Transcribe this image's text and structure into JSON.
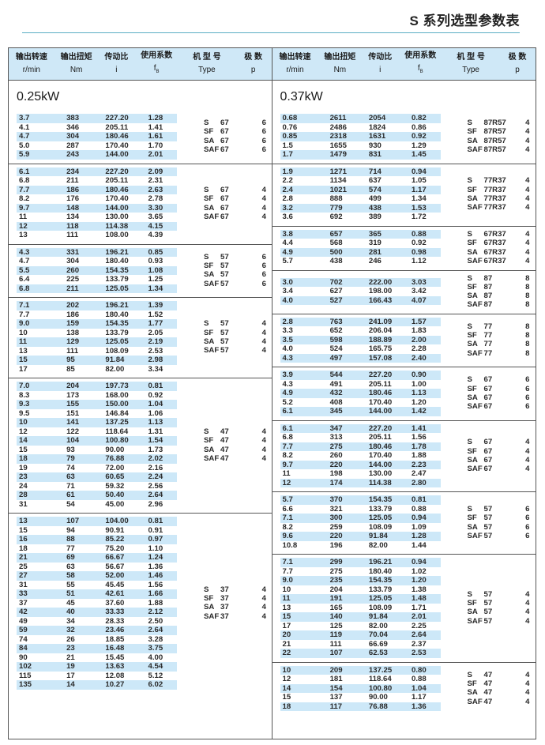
{
  "page_title": "S 系列选型参数表",
  "header": [
    {
      "zh": "输出转速",
      "en": "r/min"
    },
    {
      "zh": "输出扭矩",
      "en": "Nm"
    },
    {
      "zh": "传动比",
      "en": "i"
    },
    {
      "zh": "使用系数",
      "en": "f",
      "sub": "B"
    },
    {
      "zh": "机 型 号",
      "en": "Type"
    },
    {
      "zh": "极 数",
      "en": "p"
    }
  ],
  "left": {
    "power": "0.25kW",
    "groups": [
      {
        "rows": [
          [
            "3.7",
            "383",
            "227.20",
            "1.28"
          ],
          [
            "4.1",
            "346",
            "205.11",
            "1.41"
          ],
          [
            "4.7",
            "304",
            "180.46",
            "1.61"
          ],
          [
            "5.0",
            "287",
            "170.40",
            "1.70"
          ],
          [
            "5.9",
            "243",
            "144.00",
            "2.01"
          ]
        ],
        "types": [
          [
            "S",
            "67",
            "6"
          ],
          [
            "SF",
            "67",
            "6"
          ],
          [
            "SA",
            "67",
            "6"
          ],
          [
            "SAF",
            "67",
            "6"
          ]
        ]
      },
      {
        "rows": [
          [
            "6.1",
            "234",
            "227.20",
            "2.09"
          ],
          [
            "6.8",
            "211",
            "205.11",
            "2.31"
          ],
          [
            "7.7",
            "186",
            "180.46",
            "2.63"
          ],
          [
            "8.2",
            "176",
            "170.40",
            "2.78"
          ],
          [
            "9.7",
            "148",
            "144.00",
            "3.30"
          ],
          [
            "11",
            "134",
            "130.00",
            "3.65"
          ],
          [
            "12",
            "118",
            "114.38",
            "4.15"
          ],
          [
            "13",
            "111",
            "108.00",
            "4.39"
          ]
        ],
        "types": [
          [
            "S",
            "67",
            "4"
          ],
          [
            "SF",
            "67",
            "4"
          ],
          [
            "SA",
            "67",
            "4"
          ],
          [
            "SAF",
            "67",
            "4"
          ]
        ]
      },
      {
        "rows": [
          [
            "4.3",
            "331",
            "196.21",
            "0.85"
          ],
          [
            "4.7",
            "304",
            "180.40",
            "0.93"
          ],
          [
            "5.5",
            "260",
            "154.35",
            "1.08"
          ],
          [
            "6.4",
            "225",
            "133.79",
            "1.25"
          ],
          [
            "6.8",
            "211",
            "125.05",
            "1.34"
          ]
        ],
        "types": [
          [
            "S",
            "57",
            "6"
          ],
          [
            "SF",
            "57",
            "6"
          ],
          [
            "SA",
            "57",
            "6"
          ],
          [
            "SAF",
            "57",
            "6"
          ]
        ]
      },
      {
        "rows": [
          [
            "7.1",
            "202",
            "196.21",
            "1.39"
          ],
          [
            "7.7",
            "186",
            "180.40",
            "1.52"
          ],
          [
            "9.0",
            "159",
            "154.35",
            "1.77"
          ],
          [
            "10",
            "138",
            "133.79",
            "2.05"
          ],
          [
            "11",
            "129",
            "125.05",
            "2.19"
          ],
          [
            "13",
            "111",
            "108.09",
            "2.53"
          ],
          [
            "15",
            "95",
            "91.84",
            "2.98"
          ],
          [
            "17",
            "85",
            "82.00",
            "3.34"
          ]
        ],
        "types": [
          [
            "S",
            "57",
            "4"
          ],
          [
            "SF",
            "57",
            "4"
          ],
          [
            "SA",
            "57",
            "4"
          ],
          [
            "SAF",
            "57",
            "4"
          ]
        ]
      },
      {
        "rows": [
          [
            "7.0",
            "204",
            "197.73",
            "0.81"
          ],
          [
            "8.3",
            "173",
            "168.00",
            "0.92"
          ],
          [
            "9.3",
            "155",
            "150.00",
            "1.04"
          ],
          [
            "9.5",
            "151",
            "146.84",
            "1.06"
          ],
          [
            "10",
            "141",
            "137.25",
            "1.13"
          ],
          [
            "12",
            "122",
            "118.64",
            "1.31"
          ],
          [
            "14",
            "104",
            "100.80",
            "1.54"
          ],
          [
            "15",
            "93",
            "90.00",
            "1.73"
          ],
          [
            "18",
            "79",
            "76.88",
            "2.02"
          ],
          [
            "19",
            "74",
            "72.00",
            "2.16"
          ],
          [
            "23",
            "63",
            "60.65",
            "2.24"
          ],
          [
            "24",
            "71",
            "59.32",
            "2.56"
          ],
          [
            "28",
            "61",
            "50.40",
            "2.64"
          ],
          [
            "31",
            "54",
            "45.00",
            "2.96"
          ]
        ],
        "types": [
          [
            "S",
            "47",
            "4"
          ],
          [
            "SF",
            "47",
            "4"
          ],
          [
            "SA",
            "47",
            "4"
          ],
          [
            "SAF",
            "47",
            "4"
          ]
        ]
      },
      {
        "rows": [
          [
            "13",
            "107",
            "104.00",
            "0.81"
          ],
          [
            "15",
            "94",
            "90.91",
            "0.91"
          ],
          [
            "16",
            "88",
            "85.22",
            "0.97"
          ],
          [
            "18",
            "77",
            "75.20",
            "1.10"
          ],
          [
            "21",
            "69",
            "66.67",
            "1.24"
          ],
          [
            "25",
            "63",
            "56.67",
            "1.36"
          ],
          [
            "27",
            "58",
            "52.00",
            "1.46"
          ],
          [
            "31",
            "55",
            "45.45",
            "1.56"
          ],
          [
            "33",
            "51",
            "42.61",
            "1.66"
          ],
          [
            "37",
            "45",
            "37.60",
            "1.88"
          ],
          [
            "42",
            "40",
            "33.33",
            "2.12"
          ],
          [
            "49",
            "34",
            "28.33",
            "2.50"
          ],
          [
            "59",
            "32",
            "23.46",
            "2.64"
          ],
          [
            "74",
            "26",
            "18.85",
            "3.28"
          ],
          [
            "84",
            "23",
            "16.48",
            "3.75"
          ],
          [
            "90",
            "21",
            "15.45",
            "4.00"
          ],
          [
            "102",
            "19",
            "13.63",
            "4.54"
          ],
          [
            "115",
            "17",
            "12.08",
            "5.12"
          ],
          [
            "135",
            "14",
            "10.27",
            "6.02"
          ]
        ],
        "types": [
          [
            "S",
            "37",
            "4"
          ],
          [
            "SF",
            "37",
            "4"
          ],
          [
            "SA",
            "37",
            "4"
          ],
          [
            "SAF",
            "37",
            "4"
          ]
        ]
      }
    ]
  },
  "right": {
    "power": "0.37kW",
    "groups": [
      {
        "rows": [
          [
            "0.68",
            "2611",
            "2054",
            "0.82"
          ],
          [
            "0.76",
            "2486",
            "1824",
            "0.86"
          ],
          [
            "0.85",
            "2318",
            "1631",
            "0.92"
          ],
          [
            "1.5",
            "1655",
            "930",
            "1.29"
          ],
          [
            "1.7",
            "1479",
            "831",
            "1.45"
          ]
        ],
        "types": [
          [
            "S",
            "87R57",
            "4"
          ],
          [
            "SF",
            "87R57",
            "4"
          ],
          [
            "SA",
            "87R57",
            "4"
          ],
          [
            "SAF",
            "87R57",
            "4"
          ]
        ]
      },
      {
        "rows": [
          [
            "1.9",
            "1271",
            "714",
            "0.94"
          ],
          [
            "2.2",
            "1134",
            "637",
            "1.05"
          ],
          [
            "2.4",
            "1021",
            "574",
            "1.17"
          ],
          [
            "2.8",
            "888",
            "499",
            "1.34"
          ],
          [
            "3.2",
            "779",
            "438",
            "1.53"
          ],
          [
            "3.6",
            "692",
            "389",
            "1.72"
          ]
        ],
        "types": [
          [
            "S",
            "77R37",
            "4"
          ],
          [
            "SF",
            "77R37",
            "4"
          ],
          [
            "SA",
            "77R37",
            "4"
          ],
          [
            "SAF",
            "77R37",
            "4"
          ]
        ]
      },
      {
        "rows": [
          [
            "3.8",
            "657",
            "365",
            "0.88"
          ],
          [
            "4.4",
            "568",
            "319",
            "0.92"
          ],
          [
            "4.9",
            "500",
            "281",
            "0.98"
          ],
          [
            "5.7",
            "438",
            "246",
            "1.12"
          ]
        ],
        "types": [
          [
            "S",
            "67R37",
            "4"
          ],
          [
            "SF",
            "67R37",
            "4"
          ],
          [
            "SA",
            "67R37",
            "4"
          ],
          [
            "SAF",
            "67R37",
            "4"
          ]
        ]
      },
      {
        "rows": [
          [
            "3.0",
            "702",
            "222.00",
            "3.03"
          ],
          [
            "3.4",
            "627",
            "198.00",
            "3.42"
          ],
          [
            "4.0",
            "527",
            "166.43",
            "4.07"
          ]
        ],
        "types": [
          [
            "S",
            "87",
            "8"
          ],
          [
            "SF",
            "87",
            "8"
          ],
          [
            "SA",
            "87",
            "8"
          ],
          [
            "SAF",
            "87",
            "8"
          ]
        ]
      },
      {
        "rows": [
          [
            "2.8",
            "763",
            "241.09",
            "1.57"
          ],
          [
            "3.3",
            "652",
            "206.04",
            "1.83"
          ],
          [
            "3.5",
            "598",
            "188.89",
            "2.00"
          ],
          [
            "4.0",
            "524",
            "165.75",
            "2.28"
          ],
          [
            "4.3",
            "497",
            "157.08",
            "2.40"
          ]
        ],
        "types": [
          [
            "S",
            "77",
            "8"
          ],
          [
            "SF",
            "77",
            "8"
          ],
          [
            "SA",
            "77",
            "8"
          ],
          [
            "SAF",
            "77",
            "8"
          ]
        ]
      },
      {
        "rows": [
          [
            "3.9",
            "544",
            "227.20",
            "0.90"
          ],
          [
            "4.3",
            "491",
            "205.11",
            "1.00"
          ],
          [
            "4.9",
            "432",
            "180.46",
            "1.13"
          ],
          [
            "5.2",
            "408",
            "170.40",
            "1.20"
          ],
          [
            "6.1",
            "345",
            "144.00",
            "1.42"
          ]
        ],
        "types": [
          [
            "S",
            "67",
            "6"
          ],
          [
            "SF",
            "67",
            "6"
          ],
          [
            "SA",
            "67",
            "6"
          ],
          [
            "SAF",
            "67",
            "6"
          ]
        ]
      },
      {
        "rows": [
          [
            "6.1",
            "347",
            "227.20",
            "1.41"
          ],
          [
            "6.8",
            "313",
            "205.11",
            "1.56"
          ],
          [
            "7.7",
            "275",
            "180.46",
            "1.78"
          ],
          [
            "8.2",
            "260",
            "170.40",
            "1.88"
          ],
          [
            "9.7",
            "220",
            "144.00",
            "2.23"
          ],
          [
            "11",
            "198",
            "130.00",
            "2.47"
          ],
          [
            "12",
            "174",
            "114.38",
            "2.80"
          ]
        ],
        "types": [
          [
            "S",
            "67",
            "4"
          ],
          [
            "SF",
            "67",
            "4"
          ],
          [
            "SA",
            "67",
            "4"
          ],
          [
            "SAF",
            "67",
            "4"
          ]
        ]
      },
      {
        "rows": [
          [
            "5.7",
            "370",
            "154.35",
            "0.81"
          ],
          [
            "6.6",
            "321",
            "133.79",
            "0.88"
          ],
          [
            "7.1",
            "300",
            "125.05",
            "0.94"
          ],
          [
            "8.2",
            "259",
            "108.09",
            "1.09"
          ],
          [
            "9.6",
            "220",
            "91.84",
            "1.28"
          ],
          [
            "10.8",
            "196",
            "82.00",
            "1.44"
          ]
        ],
        "types": [
          [
            "S",
            "57",
            "6"
          ],
          [
            "SF",
            "57",
            "6"
          ],
          [
            "SA",
            "57",
            "6"
          ],
          [
            "SAF",
            "57",
            "6"
          ]
        ]
      },
      {
        "rows": [
          [
            "7.1",
            "299",
            "196.21",
            "0.94"
          ],
          [
            "7.7",
            "275",
            "180.40",
            "1.02"
          ],
          [
            "9.0",
            "235",
            "154.35",
            "1.20"
          ],
          [
            "10",
            "204",
            "133.79",
            "1.38"
          ],
          [
            "11",
            "191",
            "125.05",
            "1.48"
          ],
          [
            "13",
            "165",
            "108.09",
            "1.71"
          ],
          [
            "15",
            "140",
            "91.84",
            "2.01"
          ],
          [
            "17",
            "125",
            "82.00",
            "2.25"
          ],
          [
            "20",
            "119",
            "70.04",
            "2.64"
          ],
          [
            "21",
            "111",
            "66.69",
            "2.37"
          ],
          [
            "22",
            "107",
            "62.53",
            "2.53"
          ]
        ],
        "types": [
          [
            "S",
            "57",
            "4"
          ],
          [
            "SF",
            "57",
            "4"
          ],
          [
            "SA",
            "57",
            "4"
          ],
          [
            "SAF",
            "57",
            "4"
          ]
        ]
      },
      {
        "rows": [
          [
            "10",
            "209",
            "137.25",
            "0.80"
          ],
          [
            "12",
            "181",
            "118.64",
            "0.88"
          ],
          [
            "14",
            "154",
            "100.80",
            "1.04"
          ],
          [
            "15",
            "137",
            "90.00",
            "1.17"
          ],
          [
            "18",
            "117",
            "76.88",
            "1.36"
          ]
        ],
        "types": [
          [
            "S",
            "47",
            "4"
          ],
          [
            "SF",
            "47",
            "4"
          ],
          [
            "SA",
            "47",
            "4"
          ],
          [
            "SAF",
            "47",
            "4"
          ]
        ]
      }
    ]
  },
  "colors": {
    "header_bg": "#cfe8f7",
    "stripe": "#cde8f8",
    "rule": "#5aaec4"
  }
}
